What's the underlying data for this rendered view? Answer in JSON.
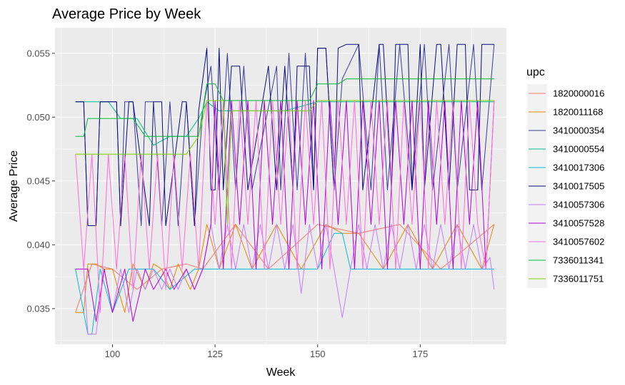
{
  "chart_data": {
    "type": "line",
    "title": "Average Price by Week",
    "xlabel": "Week",
    "ylabel": "Average Price",
    "xlim": [
      86,
      196
    ],
    "ylim": [
      0.0322,
      0.057
    ],
    "x_ticks": [
      100,
      125,
      150,
      175
    ],
    "y_ticks": [
      0.035,
      0.04,
      0.045,
      0.05,
      0.055
    ],
    "y_tick_labels": [
      "0.035",
      "0.040",
      "0.045",
      "0.050",
      "0.055"
    ],
    "grid": true,
    "legend": {
      "title": "upc",
      "placement": "right"
    },
    "series": [
      {
        "name": "1820000016",
        "color": "#F8766D",
        "x": [
          91,
          95,
          100,
          106,
          112,
          118,
          122,
          130,
          138,
          150,
          160,
          170,
          180,
          193
        ],
        "y": [
          0.0347,
          0.0385,
          0.0381,
          0.0365,
          0.0381,
          0.0385,
          0.0381,
          0.0416,
          0.0381,
          0.0416,
          0.0409,
          0.0416,
          0.0381,
          0.0416
        ]
      },
      {
        "name": "1820011168",
        "color": "#E58700",
        "x": [
          91,
          93,
          94,
          96,
          98,
          100,
          103,
          105,
          108,
          110,
          112,
          114,
          116,
          119,
          121,
          123,
          126,
          130,
          134,
          140,
          146,
          152,
          156,
          160,
          166,
          172,
          178,
          184,
          190,
          193
        ],
        "y": [
          0.0347,
          0.0347,
          0.0385,
          0.0385,
          0.0381,
          0.0381,
          0.0347,
          0.0385,
          0.0365,
          0.0385,
          0.0381,
          0.0365,
          0.0385,
          0.0365,
          0.0381,
          0.0416,
          0.0381,
          0.0416,
          0.0381,
          0.0416,
          0.0381,
          0.0416,
          0.0409,
          0.0409,
          0.0381,
          0.0416,
          0.0381,
          0.0416,
          0.0381,
          0.0416
        ]
      },
      {
        "name": "3410000354",
        "color": "#3C3C9C",
        "x": [
          91,
          93,
          94,
          96,
          97,
          101,
          102,
          103,
          105,
          107,
          108,
          110,
          112,
          114,
          116,
          118,
          120,
          122,
          124,
          126,
          128,
          130,
          132,
          134,
          140,
          141,
          143,
          145,
          147,
          149,
          150,
          152,
          154,
          156,
          160,
          163,
          165,
          167,
          170,
          173,
          176,
          178,
          182,
          184,
          188,
          190,
          193
        ],
        "y": [
          0.0512,
          0.0512,
          0.0415,
          0.0415,
          0.0512,
          0.0512,
          0.0415,
          0.0512,
          0.0512,
          0.0415,
          0.0512,
          0.0512,
          0.0415,
          0.0512,
          0.0415,
          0.0512,
          0.0415,
          0.0505,
          0.054,
          0.0443,
          0.055,
          0.0443,
          0.054,
          0.0443,
          0.054,
          0.0443,
          0.055,
          0.0443,
          0.055,
          0.0443,
          0.0554,
          0.0554,
          0.0443,
          0.053,
          0.0557,
          0.0443,
          0.0557,
          0.0443,
          0.0557,
          0.0443,
          0.0557,
          0.0443,
          0.0557,
          0.0443,
          0.0557,
          0.0443,
          0.0557
        ]
      },
      {
        "name": "3410000554",
        "color": "#00C08B",
        "x": [
          91,
          95,
          99,
          102,
          106,
          110,
          114,
          118,
          121,
          123,
          126,
          130,
          136,
          142,
          150,
          158,
          166,
          174,
          182,
          193
        ],
        "y": [
          0.0512,
          0.0512,
          0.0512,
          0.0499,
          0.0499,
          0.0478,
          0.0485,
          0.0485,
          0.0499,
          0.0512,
          0.0505,
          0.0505,
          0.0505,
          0.0505,
          0.0512,
          0.0512,
          0.0512,
          0.0512,
          0.0512,
          0.0512
        ]
      },
      {
        "name": "3410017306",
        "color": "#00BCD8",
        "x": [
          91,
          94,
          95,
          97,
          100,
          104,
          110,
          114,
          120,
          130,
          140,
          150,
          154,
          156,
          158,
          166,
          176,
          186,
          193
        ],
        "y": [
          0.0381,
          0.033,
          0.033,
          0.0381,
          0.0347,
          0.0381,
          0.0381,
          0.0365,
          0.0381,
          0.0381,
          0.0381,
          0.0381,
          0.0409,
          0.0409,
          0.0381,
          0.0381,
          0.0381,
          0.0381,
          0.0381
        ]
      },
      {
        "name": "3410017505",
        "color": "#0B0B7A",
        "x": [
          91,
          93,
          94,
          96,
          97,
          101,
          102,
          104,
          105,
          109,
          110,
          112,
          113,
          117,
          118,
          120,
          121,
          123,
          124,
          125,
          126,
          127,
          129,
          131,
          133,
          138,
          140,
          142,
          144,
          145,
          148,
          149,
          150,
          152,
          154,
          155,
          157,
          160,
          161,
          165,
          166,
          168,
          169,
          172,
          173,
          175,
          176,
          179,
          180,
          182,
          184,
          186,
          187,
          189,
          190,
          193
        ],
        "y": [
          0.0512,
          0.0512,
          0.0415,
          0.0415,
          0.0512,
          0.0512,
          0.0415,
          0.0512,
          0.0512,
          0.0415,
          0.0512,
          0.0512,
          0.0415,
          0.0512,
          0.0512,
          0.0415,
          0.0505,
          0.0554,
          0.0443,
          0.0443,
          0.0554,
          0.0443,
          0.054,
          0.054,
          0.0443,
          0.054,
          0.0443,
          0.054,
          0.0443,
          0.054,
          0.054,
          0.0443,
          0.0554,
          0.0554,
          0.0443,
          0.0554,
          0.0557,
          0.0557,
          0.0443,
          0.0557,
          0.0557,
          0.0443,
          0.0557,
          0.0557,
          0.0443,
          0.0557,
          0.0443,
          0.0557,
          0.0557,
          0.0443,
          0.0557,
          0.0557,
          0.0443,
          0.0443,
          0.0557,
          0.0557
        ]
      },
      {
        "name": "3410057306",
        "color": "#C77CFF",
        "x": [
          91,
          93,
          94,
          96,
          98,
          100,
          102,
          104,
          106,
          108,
          110,
          112,
          114,
          116,
          118,
          120,
          122,
          124,
          126,
          128,
          130,
          132,
          134,
          136,
          138,
          140,
          142,
          144,
          146,
          148,
          150,
          152,
          154,
          156,
          158,
          160,
          162,
          164,
          166,
          168,
          170,
          172,
          174,
          176,
          178,
          180,
          182,
          184,
          186,
          188,
          190,
          192,
          193
        ],
        "y": [
          0.0381,
          0.0381,
          0.033,
          0.033,
          0.0381,
          0.0347,
          0.0381,
          0.0347,
          0.0381,
          0.0365,
          0.0381,
          0.0365,
          0.0381,
          0.0365,
          0.0381,
          0.0365,
          0.0381,
          0.0416,
          0.0381,
          0.0416,
          0.0381,
          0.0416,
          0.0381,
          0.0416,
          0.0381,
          0.0416,
          0.0381,
          0.0416,
          0.0362,
          0.0416,
          0.0381,
          0.0416,
          0.0381,
          0.0343,
          0.0381,
          0.0416,
          0.0381,
          0.0416,
          0.0381,
          0.0416,
          0.0381,
          0.0416,
          0.0381,
          0.0416,
          0.0381,
          0.0416,
          0.0381,
          0.0416,
          0.0381,
          0.0416,
          0.0381,
          0.039,
          0.0365
        ]
      },
      {
        "name": "3410057528",
        "color": "#B000D8",
        "x": [
          91,
          94,
          96,
          98,
          100,
          103,
          105,
          108,
          110,
          113,
          115,
          118,
          120,
          122,
          124,
          125,
          127,
          129,
          131,
          133,
          135,
          137,
          139,
          141,
          143,
          145,
          147,
          149,
          151,
          153,
          155,
          157,
          159,
          161,
          163,
          165,
          167,
          169,
          171,
          173,
          175,
          177,
          179,
          181,
          183,
          185,
          187,
          189,
          191,
          193
        ],
        "y": [
          0.0381,
          0.0381,
          0.034,
          0.0381,
          0.0347,
          0.0381,
          0.034,
          0.0381,
          0.0365,
          0.0381,
          0.0365,
          0.0381,
          0.0365,
          0.0381,
          0.0416,
          0.0513,
          0.0381,
          0.0513,
          0.0416,
          0.0513,
          0.0381,
          0.0513,
          0.0416,
          0.0513,
          0.0381,
          0.0513,
          0.0416,
          0.0513,
          0.0381,
          0.0513,
          0.0416,
          0.0513,
          0.0381,
          0.0513,
          0.0416,
          0.0513,
          0.0381,
          0.0513,
          0.0416,
          0.0513,
          0.0381,
          0.0513,
          0.0416,
          0.0513,
          0.0381,
          0.0513,
          0.0416,
          0.0513,
          0.0381,
          0.0513
        ]
      },
      {
        "name": "3410057602",
        "color": "#FF6BDA",
        "x": [
          91,
          93,
          95,
          97,
          99,
          101,
          103,
          105,
          107,
          109,
          111,
          113,
          115,
          117,
          119,
          121,
          123,
          125,
          127,
          129,
          131,
          133,
          135,
          137,
          139,
          141,
          143,
          145,
          147,
          149,
          151,
          153,
          155,
          157,
          159,
          161,
          163,
          165,
          167,
          169,
          171,
          173,
          175,
          177,
          179,
          181,
          183,
          185,
          187,
          189,
          191,
          193
        ],
        "y": [
          0.0471,
          0.0381,
          0.0471,
          0.0347,
          0.0471,
          0.0381,
          0.0471,
          0.0365,
          0.0471,
          0.0381,
          0.0471,
          0.0365,
          0.0471,
          0.0381,
          0.0471,
          0.0381,
          0.0513,
          0.0416,
          0.0513,
          0.0381,
          0.0513,
          0.0416,
          0.0513,
          0.0381,
          0.0513,
          0.0416,
          0.0513,
          0.0381,
          0.0513,
          0.0416,
          0.0513,
          0.0381,
          0.0513,
          0.0416,
          0.0513,
          0.0381,
          0.0513,
          0.0416,
          0.0513,
          0.0381,
          0.0513,
          0.0416,
          0.0513,
          0.0381,
          0.0513,
          0.0416,
          0.0513,
          0.0381,
          0.0513,
          0.0416,
          0.0381,
          0.0513
        ]
      },
      {
        "name": "7336011341",
        "color": "#00BA38",
        "x": [
          91,
          93,
          94,
          96,
          100,
          105,
          108,
          110,
          114,
          118,
          121,
          123,
          125,
          127,
          130,
          140,
          148,
          150,
          153,
          155,
          157,
          160,
          170,
          180,
          193
        ],
        "y": [
          0.0485,
          0.0485,
          0.0499,
          0.0499,
          0.0499,
          0.0499,
          0.0485,
          0.0485,
          0.0485,
          0.0485,
          0.0485,
          0.0526,
          0.0526,
          0.0513,
          0.0513,
          0.0513,
          0.0513,
          0.0526,
          0.0526,
          0.0526,
          0.053,
          0.053,
          0.053,
          0.053,
          0.053
        ]
      },
      {
        "name": "7336011751",
        "color": "#7CD400",
        "x": [
          91,
          95,
          100,
          106,
          112,
          118,
          121,
          123,
          127,
          128,
          129,
          130,
          136,
          142,
          148,
          150,
          160,
          170,
          180,
          193
        ],
        "y": [
          0.0471,
          0.0471,
          0.0471,
          0.0471,
          0.0471,
          0.0471,
          0.0485,
          0.0513,
          0.0513,
          0.0416,
          0.0505,
          0.0505,
          0.0505,
          0.0505,
          0.0505,
          0.0513,
          0.0513,
          0.0513,
          0.0513,
          0.0513
        ]
      }
    ]
  }
}
